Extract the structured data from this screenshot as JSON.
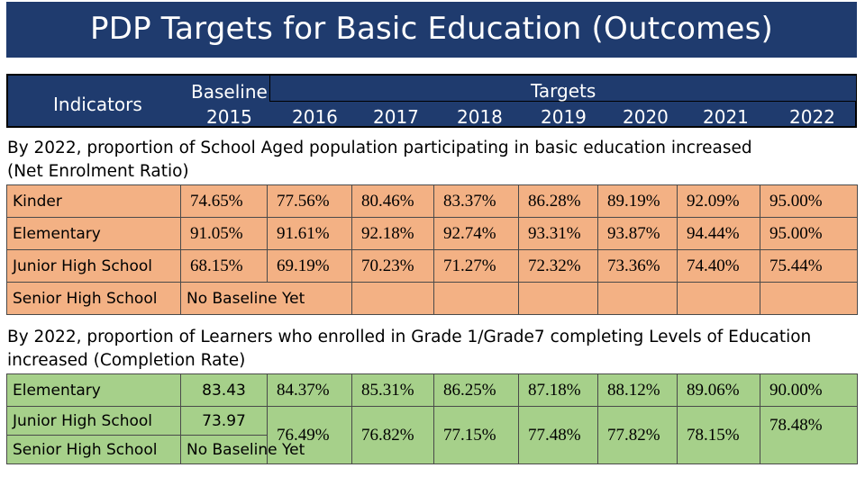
{
  "title": "PDP Targets for Basic Education (Outcomes)",
  "header": {
    "indicators": "Indicators",
    "baseline": "Baseline",
    "baseline_year": "2015",
    "targets": "Targets",
    "years": [
      "2016",
      "2017",
      "2018",
      "2019",
      "2020",
      "2021",
      "2022"
    ]
  },
  "section1": {
    "caption": "By 2022, proportion of School Aged population participating in basic education increased (Net Enrolment Ratio)",
    "rows": [
      {
        "label": "Kinder",
        "values": [
          "74.65%",
          "77.56%",
          "80.46%",
          "83.37%",
          "86.28%",
          "89.19%",
          "92.09%",
          "95.00%"
        ]
      },
      {
        "label": "Elementary",
        "values": [
          "91.05%",
          "91.61%",
          "92.18%",
          "92.74%",
          "93.31%",
          "93.87%",
          "94.44%",
          "95.00%"
        ]
      },
      {
        "label": "Junior High School",
        "values": [
          "68.15%",
          "69.19%",
          "70.23%",
          "71.27%",
          "72.32%",
          "73.36%",
          "74.40%",
          "75.44%"
        ]
      },
      {
        "label": "Senior High School",
        "values": [
          "",
          "",
          "",
          "",
          "",
          "",
          "",
          ""
        ]
      }
    ],
    "no_baseline": "No Baseline Yet"
  },
  "section2": {
    "caption": "By 2022, proportion of Learners who enrolled in Grade 1/Grade7 completing Levels of Education increased (Completion Rate)",
    "rows": [
      {
        "label": "Elementary",
        "values": [
          "83.43",
          "84.37%",
          "85.31%",
          "86.25%",
          "87.18%",
          "88.12%",
          "89.06%",
          "90.00%"
        ]
      },
      {
        "label": "Junior High School",
        "values": [
          "73.97",
          "76.49%",
          "76.82%",
          "77.15%",
          "77.48%",
          "77.82%",
          "78.15%",
          "78.48%"
        ]
      },
      {
        "label": "Senior High School",
        "values": [
          "",
          "",
          "",
          "",
          "",
          "",
          "",
          ""
        ]
      }
    ],
    "no_baseline": "No Baseline Yet"
  }
}
